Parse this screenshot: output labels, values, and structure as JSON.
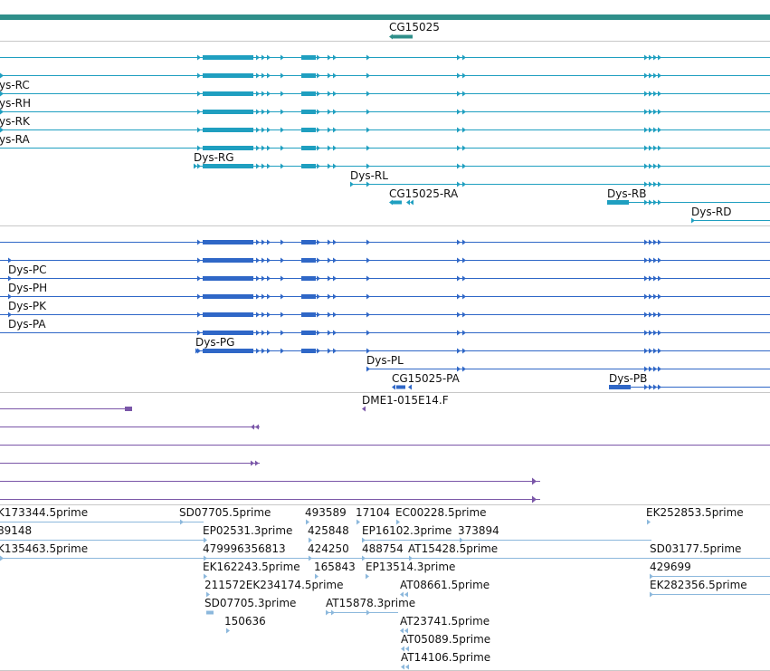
{
  "colors": {
    "gene": "#2f8f8a",
    "flybase_transcript": "#1f9fc0",
    "transcript": "#2f67c7",
    "est_match": "#7a56a8",
    "est_read": "#8cb8dc",
    "divider": "#c8c8c8"
  },
  "gene_track": {
    "label": "CG15025"
  },
  "transcript_track_1": {
    "labels": [
      "ys-RC",
      "ys-RH",
      "ys-RK",
      "ys-RA",
      "Dys-RG",
      "Dys-RL",
      "CG15025-RA",
      "Dys-RB",
      "Dys-RD"
    ]
  },
  "transcript_track_2": {
    "labels": [
      "Dys-PC",
      "Dys-PH",
      "Dys-PK",
      "Dys-PA",
      "Dys-PG",
      "Dys-PL",
      "CG15025-PA",
      "Dys-PB"
    ]
  },
  "match_track": {
    "label": "DME1-015E14.F"
  },
  "est_track": {
    "labels": [
      "K173344.5prime",
      "89148",
      "K135463.5prime",
      "SD07705.5prime",
      "EP02531.3prime",
      "479996356813",
      "EK162243.5prime",
      "211572EK234174.5prime",
      "SD07705.3prime",
      "150636",
      "493589",
      "425848",
      "424250",
      "165843",
      "17104",
      "EC00228.5prime",
      "EP16102.3prime",
      "373894",
      "488754",
      "AT15428.5prime",
      "EP13514.3prime",
      "AT08661.5prime",
      "AT15878.3prime",
      "AT23741.5prime",
      "AT05089.5prime",
      "AT14106.5prime",
      "EK252853.5prime",
      "SD03177.5prime",
      "429699",
      "EK282356.5prime"
    ]
  }
}
